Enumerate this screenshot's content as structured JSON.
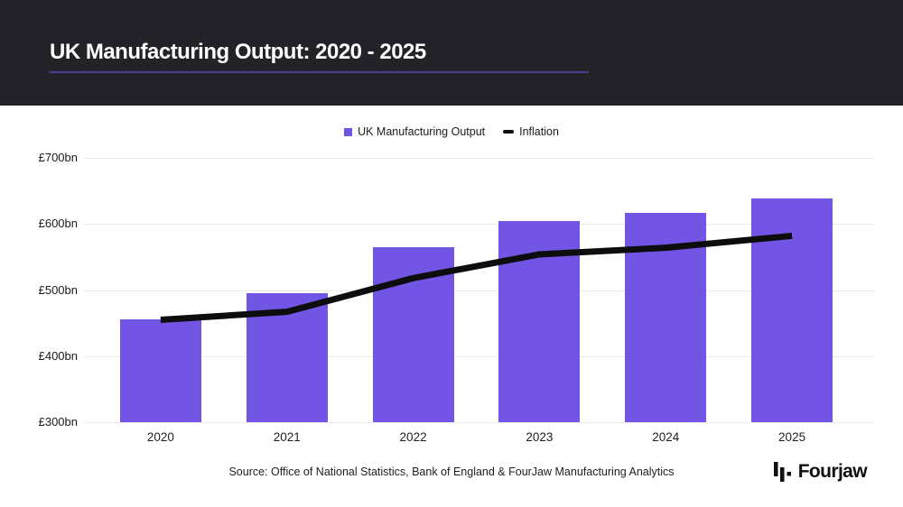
{
  "header": {
    "title": "UK Manufacturing Output: 2020 - 2025"
  },
  "legend": {
    "items": [
      {
        "label": "UK Manufacturing Output",
        "marker": "square",
        "color": "#7255e4"
      },
      {
        "label": "Inflation",
        "marker": "dash",
        "color": "#0d0d0d"
      }
    ]
  },
  "chart_data": {
    "type": "bar",
    "title": "UK Manufacturing Output: 2020 - 2025",
    "categories": [
      "2020",
      "2021",
      "2022",
      "2023",
      "2024",
      "2025"
    ],
    "series": [
      {
        "name": "UK Manufacturing Output",
        "type": "bar",
        "color": "#7255e4",
        "values": [
          455,
          495,
          565,
          605,
          617,
          638
        ]
      },
      {
        "name": "Inflation",
        "type": "line",
        "color": "#0d0d0d",
        "values": [
          455,
          467,
          518,
          554,
          564,
          582
        ]
      }
    ],
    "unit": "£bn",
    "ylim": [
      300,
      700
    ],
    "yticks": [
      300,
      400,
      500,
      600,
      700
    ],
    "ytick_labels": [
      "£300bn",
      "£400bn",
      "£500bn",
      "£600bn",
      "£700bn"
    ],
    "grid": "horizontal",
    "legend_position": "top-center"
  },
  "footer": {
    "source": "Source: Office of National Statistics, Bank of England & FourJaw Manufacturing Analytics",
    "logo_text": "Fourjaw"
  },
  "colors": {
    "header_bg": "#222228",
    "title_text": "#ffffff",
    "title_underline": "#4d3d96",
    "page_bg": "#ffffff",
    "bar": "#7255e4",
    "line": "#0d0d0d",
    "gridline": "#eaeaea",
    "axis_text": "#1a1a1a"
  }
}
